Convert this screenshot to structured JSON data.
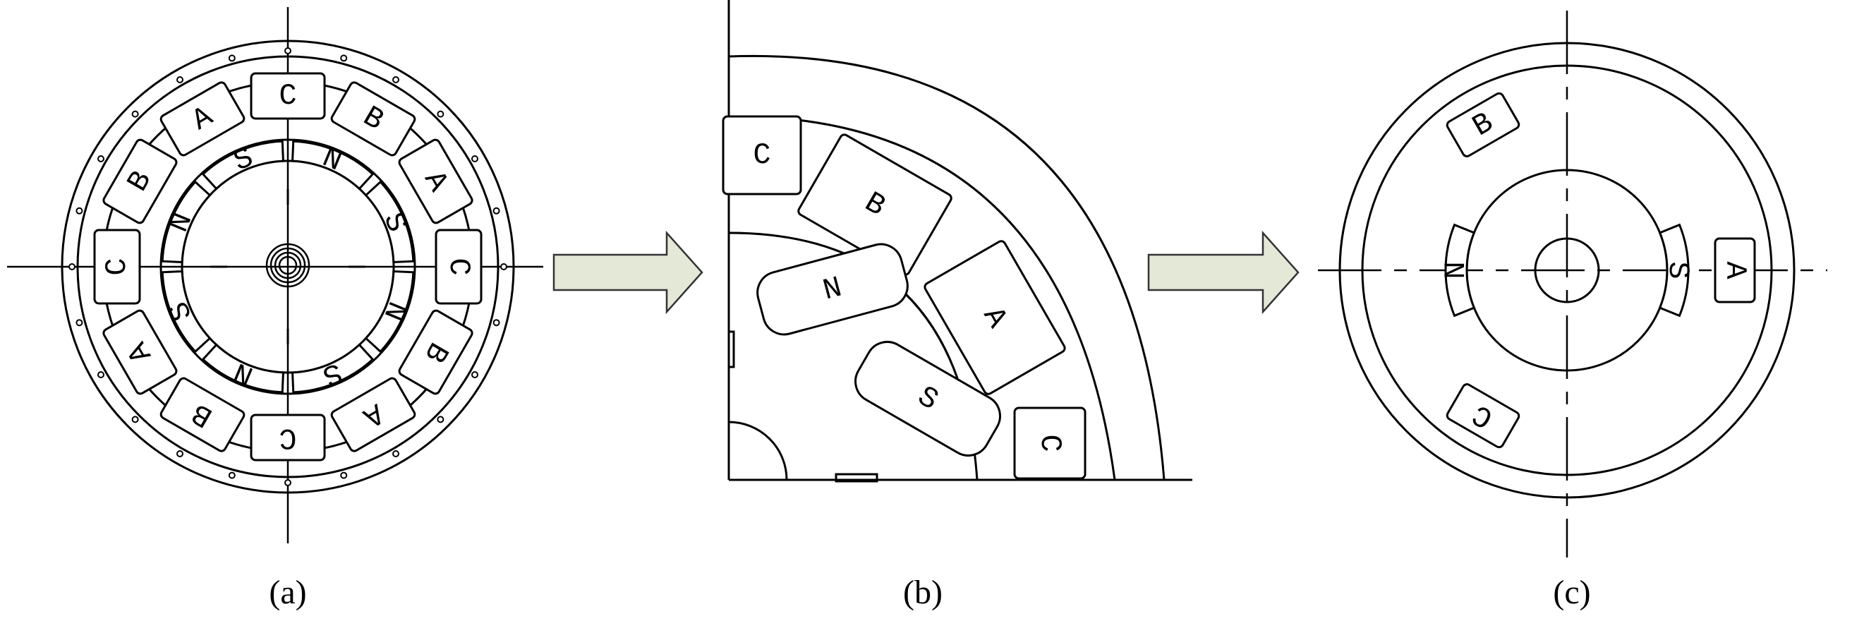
{
  "captions": [
    "(a)",
    "(b)",
    "(c)"
  ],
  "panel_a": {
    "outer_slot_labels": [
      "C",
      "B",
      "A",
      "C",
      "B",
      "A",
      "C",
      "B",
      "A",
      "C",
      "B",
      "A"
    ],
    "magnet_labels": [
      "N",
      "S",
      "N",
      "S",
      "N",
      "S",
      "N",
      "S"
    ]
  },
  "panel_b": {
    "slot_labels": [
      "C",
      "B",
      "A",
      "C"
    ],
    "magnet_labels": [
      "N",
      "S"
    ]
  },
  "panel_c": {
    "slot_labels": [
      "A",
      "B",
      "C"
    ],
    "magnet_labels": [
      "S",
      "N"
    ]
  },
  "colors": {
    "line": "#000000",
    "arrow_fill": "#e4e8d7",
    "arrow_stroke": "#333333"
  }
}
